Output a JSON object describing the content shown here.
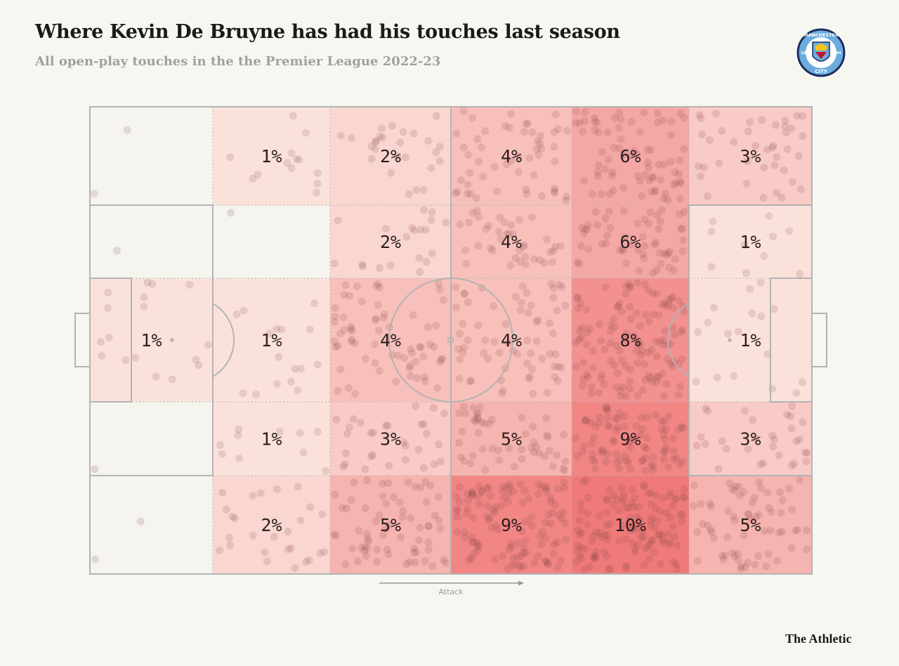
{
  "title": "Where Kevin De Bruyne has had his touches last season",
  "subtitle": "All open-play touches in the the Premier League 2022-23",
  "brand": "The Athletic",
  "badge": {
    "top_text": "MANCHESTER",
    "bottom_text": "CITY",
    "left_num": "18",
    "right_num": "94",
    "icon": "manchester-city-crest-icon"
  },
  "direction_label": "Attack",
  "colors": {
    "background": "#f7f7f2",
    "heat_high": "#f07a7a",
    "heat_low": "#fbeee6",
    "dot": "#8a4a4a",
    "line": "#b3b3b3"
  },
  "chart_data": {
    "type": "heatmap",
    "title": "Where Kevin De Bruyne has had his touches last season",
    "subtitle": "All open-play touches in the the Premier League 2022-23",
    "unit": "% of touches",
    "zones": [
      {
        "row": 0,
        "col": 0,
        "value": 0,
        "label": ""
      },
      {
        "row": 0,
        "col": 1,
        "value": 1,
        "label": "1%"
      },
      {
        "row": 0,
        "col": 2,
        "value": 2,
        "label": "2%"
      },
      {
        "row": 0,
        "col": 3,
        "value": 4,
        "label": "4%"
      },
      {
        "row": 0,
        "col": 4,
        "value": 6,
        "label": "6%"
      },
      {
        "row": 0,
        "col": 5,
        "value": 3,
        "label": "3%"
      },
      {
        "row": 1,
        "col": 0,
        "value": 0,
        "label": ""
      },
      {
        "row": 1,
        "col": 1,
        "value": 0,
        "label": ""
      },
      {
        "row": 1,
        "col": 2,
        "value": 2,
        "label": "2%"
      },
      {
        "row": 1,
        "col": 3,
        "value": 4,
        "label": "4%"
      },
      {
        "row": 1,
        "col": 4,
        "value": 6,
        "label": "6%"
      },
      {
        "row": 1,
        "col": 5,
        "value": 1,
        "label": "1%"
      },
      {
        "row": 2,
        "col": 0,
        "value": 1,
        "label": "1%"
      },
      {
        "row": 2,
        "col": 1,
        "value": 1,
        "label": "1%"
      },
      {
        "row": 2,
        "col": 2,
        "value": 4,
        "label": "4%"
      },
      {
        "row": 2,
        "col": 3,
        "value": 4,
        "label": "4%"
      },
      {
        "row": 2,
        "col": 4,
        "value": 8,
        "label": "8%"
      },
      {
        "row": 2,
        "col": 5,
        "value": 1,
        "label": "1%"
      },
      {
        "row": 3,
        "col": 0,
        "value": 0,
        "label": ""
      },
      {
        "row": 3,
        "col": 1,
        "value": 1,
        "label": "1%"
      },
      {
        "row": 3,
        "col": 2,
        "value": 3,
        "label": "3%"
      },
      {
        "row": 3,
        "col": 3,
        "value": 5,
        "label": "5%"
      },
      {
        "row": 3,
        "col": 4,
        "value": 9,
        "label": "9%"
      },
      {
        "row": 3,
        "col": 5,
        "value": 3,
        "label": "3%"
      },
      {
        "row": 4,
        "col": 0,
        "value": 0,
        "label": ""
      },
      {
        "row": 4,
        "col": 1,
        "value": 2,
        "label": "2%"
      },
      {
        "row": 4,
        "col": 2,
        "value": 5,
        "label": "5%"
      },
      {
        "row": 4,
        "col": 3,
        "value": 9,
        "label": "9%"
      },
      {
        "row": 4,
        "col": 4,
        "value": 10,
        "label": "10%"
      },
      {
        "row": 4,
        "col": 5,
        "value": 5,
        "label": "5%"
      }
    ]
  }
}
